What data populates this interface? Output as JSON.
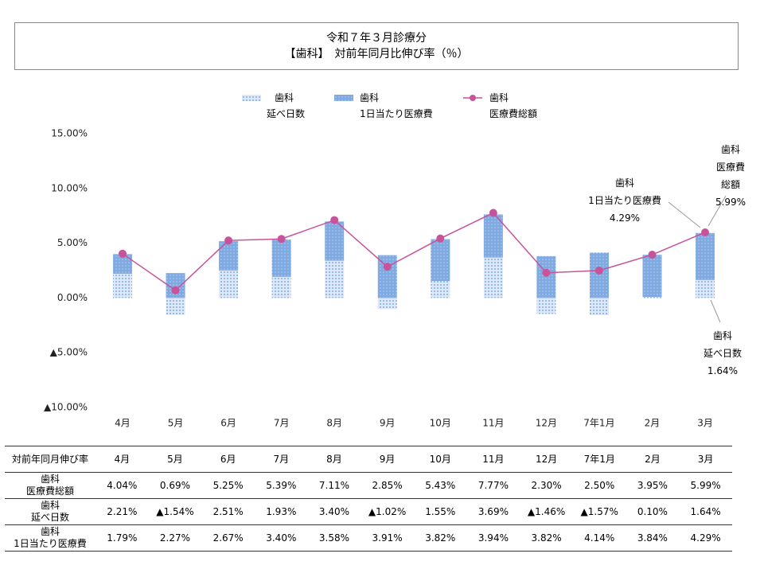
{
  "chart_data": {
    "type": "bar-line",
    "title": "令和７年３月診療分",
    "subtitle": "【歯科】　対前年同月比伸び率（％）",
    "table_header": "対前年同月伸び率",
    "categories": [
      "4月",
      "5月",
      "6月",
      "7月",
      "8月",
      "9月",
      "10月",
      "11月",
      "12月",
      "7年1月",
      "2月",
      "3月"
    ],
    "ylim": [
      -10,
      15
    ],
    "yticks": [
      {
        "value": -10,
        "label": "▲10.00%"
      },
      {
        "value": -5,
        "label": "▲5.00%"
      },
      {
        "value": 0,
        "label": "0.00%"
      },
      {
        "value": 5,
        "label": "5.00%"
      },
      {
        "value": 10,
        "label": "10.00%"
      },
      {
        "value": 15,
        "label": "15.00%"
      }
    ],
    "grid": false,
    "series": [
      {
        "name": "歯科\n延べ日数",
        "type": "bar",
        "color": "#b9cff0",
        "values": [
          2.21,
          -1.54,
          2.51,
          1.93,
          3.4,
          -1.02,
          1.55,
          3.69,
          -1.46,
          -1.57,
          0.1,
          1.64
        ],
        "value_labels": [
          "2.21%",
          "▲1.54%",
          "2.51%",
          "1.93%",
          "3.40%",
          "▲1.02%",
          "1.55%",
          "3.69%",
          "▲1.46%",
          "▲1.57%",
          "0.10%",
          "1.64%"
        ]
      },
      {
        "name": "歯科\n1日当たり医療費",
        "type": "bar",
        "color": "#7ea9e1",
        "values": [
          1.79,
          2.27,
          2.67,
          3.4,
          3.58,
          3.91,
          3.82,
          3.94,
          3.82,
          4.14,
          3.84,
          4.29
        ],
        "value_labels": [
          "1.79%",
          "2.27%",
          "2.67%",
          "3.40%",
          "3.58%",
          "3.91%",
          "3.82%",
          "3.94%",
          "3.82%",
          "4.14%",
          "3.84%",
          "4.29%"
        ]
      },
      {
        "name": "歯科\n医療費総額",
        "type": "line",
        "color": "#c8539a",
        "values": [
          4.04,
          0.69,
          5.25,
          5.39,
          7.11,
          2.85,
          5.43,
          7.77,
          2.3,
          2.5,
          3.95,
          5.99
        ],
        "value_labels": [
          "4.04%",
          "0.69%",
          "5.25%",
          "5.39%",
          "7.11%",
          "2.85%",
          "5.43%",
          "7.77%",
          "2.30%",
          "2.50%",
          "3.95%",
          "5.99%"
        ]
      }
    ]
  }
}
